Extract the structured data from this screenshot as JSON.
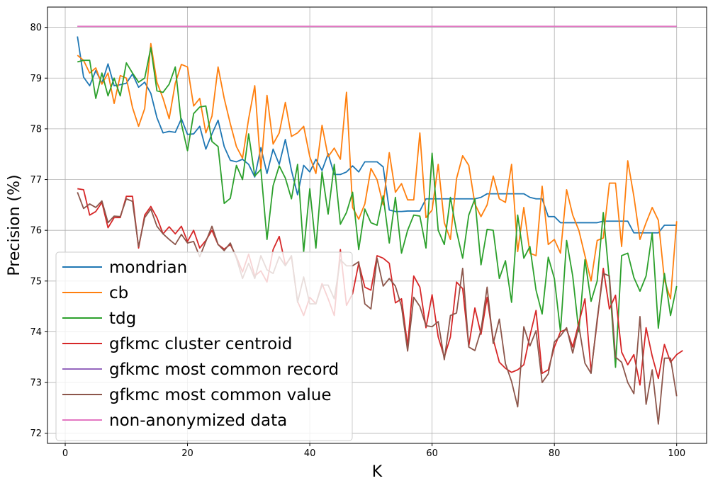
{
  "chart_data": {
    "type": "line",
    "title": "",
    "xlabel": "K",
    "ylabel": "Precision (%)",
    "xlim": [
      -2.9,
      104.9
    ],
    "ylim": [
      71.8,
      80.4
    ],
    "xticks": [
      "0",
      "20",
      "40",
      "60",
      "80",
      "100"
    ],
    "yticks": [
      "72",
      "73",
      "74",
      "75",
      "76",
      "77",
      "78",
      "79",
      "80"
    ],
    "grid": true,
    "legend_position": "lower-left",
    "x_start": 2,
    "x_step": 1,
    "series": [
      {
        "name": "mondrian",
        "color": "#1f77b4",
        "values": [
          79.82,
          79.02,
          78.85,
          79.15,
          78.9,
          79.28,
          78.85,
          78.87,
          78.9,
          79.08,
          78.82,
          78.92,
          78.7,
          78.22,
          77.92,
          77.95,
          77.93,
          78.2,
          77.89,
          77.9,
          78.05,
          77.6,
          77.9,
          78.17,
          77.65,
          77.38,
          77.35,
          77.4,
          77.3,
          77.05,
          77.63,
          77.12,
          77.6,
          77.3,
          77.79,
          77.18,
          76.7,
          77.28,
          77.15,
          77.4,
          77.18,
          77.51,
          77.1,
          77.1,
          77.15,
          77.27,
          77.15,
          77.35,
          77.35,
          77.35,
          77.25,
          76.4,
          76.37,
          76.37,
          76.38,
          76.38,
          76.38,
          76.62,
          76.62,
          76.62,
          76.62,
          76.62,
          76.62,
          76.62,
          76.62,
          76.62,
          76.65,
          76.72,
          76.72,
          76.72,
          76.72,
          76.72,
          76.72,
          76.72,
          76.65,
          76.62,
          76.62,
          76.27,
          76.27,
          76.15,
          76.15,
          76.15,
          76.15,
          76.15,
          76.15,
          76.15,
          76.18,
          76.18,
          76.18,
          76.18,
          76.18,
          75.95,
          75.95,
          75.95,
          75.95,
          75.95,
          76.1,
          76.1,
          76.1
        ]
      },
      {
        "name": "cb",
        "color": "#ff7f0e",
        "values": [
          79.45,
          79.35,
          79.1,
          79.2,
          78.88,
          79.1,
          78.5,
          79.05,
          79.0,
          78.42,
          78.05,
          78.4,
          79.68,
          78.92,
          78.6,
          78.2,
          78.9,
          79.27,
          79.22,
          78.45,
          78.6,
          77.92,
          78.25,
          79.22,
          78.6,
          78.1,
          77.65,
          77.42,
          78.2,
          78.85,
          77.2,
          78.66,
          77.7,
          77.92,
          78.52,
          77.85,
          77.92,
          78.05,
          77.45,
          77.12,
          78.07,
          77.45,
          77.62,
          77.4,
          78.72,
          76.45,
          76.22,
          76.52,
          77.22,
          77.0,
          76.5,
          77.53,
          76.75,
          76.92,
          76.6,
          76.6,
          77.92,
          76.25,
          76.4,
          77.3,
          76.15,
          75.82,
          77.02,
          77.47,
          77.28,
          76.52,
          76.27,
          76.5,
          77.07,
          76.62,
          76.55,
          77.3,
          75.58,
          76.45,
          75.55,
          75.5,
          76.87,
          75.72,
          75.82,
          75.55,
          76.8,
          76.3,
          76.0,
          75.5,
          75.0,
          75.8,
          75.85,
          76.93,
          76.93,
          75.68,
          77.37,
          76.67,
          75.82,
          76.15,
          76.45,
          76.2,
          75.02,
          74.65,
          76.18
        ]
      },
      {
        "name": "tdg",
        "color": "#2ca02c",
        "values": [
          79.32,
          79.35,
          79.35,
          78.6,
          79.1,
          78.65,
          79.0,
          78.65,
          79.3,
          79.1,
          78.92,
          79.0,
          79.6,
          78.75,
          78.72,
          78.88,
          79.22,
          78.1,
          77.57,
          78.3,
          78.43,
          78.45,
          77.75,
          77.65,
          76.53,
          76.63,
          77.28,
          77.0,
          77.9,
          77.07,
          77.2,
          75.82,
          76.88,
          77.27,
          77.03,
          76.62,
          77.3,
          75.58,
          76.82,
          75.65,
          77.15,
          76.32,
          77.3,
          76.12,
          76.35,
          76.75,
          75.62,
          76.42,
          76.15,
          76.1,
          76.68,
          75.75,
          76.65,
          75.55,
          76.0,
          76.3,
          76.28,
          75.65,
          77.52,
          76.0,
          75.72,
          76.65,
          75.98,
          75.45,
          76.3,
          76.62,
          75.32,
          76.02,
          76.0,
          75.05,
          75.4,
          74.58,
          76.3,
          75.45,
          75.68,
          74.82,
          74.35,
          75.47,
          75.05,
          74.0,
          75.8,
          75.1,
          74.0,
          75.42,
          74.6,
          75.0,
          76.35,
          75.02,
          73.3,
          75.5,
          75.55,
          75.07,
          74.8,
          75.1,
          75.95,
          74.07,
          75.15,
          74.32,
          74.9
        ]
      },
      {
        "name": "gfkmc cluster centroid",
        "color": "#d62728",
        "values": [
          76.82,
          76.8,
          76.3,
          76.37,
          76.55,
          76.05,
          76.25,
          76.25,
          76.67,
          76.67,
          75.65,
          76.3,
          76.47,
          76.25,
          75.93,
          76.07,
          75.93,
          76.08,
          75.78,
          76.0,
          75.65,
          75.8,
          76.0,
          75.72,
          75.63,
          75.72,
          75.48,
          75.18,
          75.53,
          75.1,
          75.2,
          74.98,
          75.62,
          75.88,
          75.32,
          75.48,
          74.6,
          74.32,
          74.68,
          74.55,
          74.95,
          74.65,
          74.32,
          75.62,
          74.52,
          74.75,
          75.35,
          74.88,
          74.82,
          75.5,
          75.45,
          75.35,
          74.57,
          74.65,
          73.72,
          75.1,
          74.88,
          74.08,
          74.73,
          73.9,
          73.5,
          73.9,
          74.98,
          74.85,
          73.72,
          74.47,
          73.95,
          74.68,
          73.85,
          73.4,
          73.28,
          73.2,
          73.25,
          73.35,
          73.92,
          74.42,
          73.18,
          73.25,
          73.7,
          74.0,
          74.05,
          73.7,
          74.17,
          74.65,
          73.22,
          74.2,
          75.25,
          74.45,
          74.72,
          73.6,
          73.35,
          73.55,
          72.95,
          74.08,
          73.52,
          73.08,
          73.75,
          73.4,
          73.55,
          73.63
        ]
      },
      {
        "name": "gfkmc most common record",
        "color": "#9467bd",
        "values": [
          80.02,
          80.02,
          80.02,
          80.02,
          80.02,
          80.02,
          80.02,
          80.02,
          80.02,
          80.02,
          80.02,
          80.02,
          80.02,
          80.02,
          80.02,
          80.02,
          80.02,
          80.02,
          80.02,
          80.02,
          80.02,
          80.02,
          80.02,
          80.02,
          80.02,
          80.02,
          80.02,
          80.02,
          80.02,
          80.02,
          80.02,
          80.02,
          80.02,
          80.02,
          80.02,
          80.02,
          80.02,
          80.02,
          80.02,
          80.02,
          80.02,
          80.02,
          80.02,
          80.02,
          80.02,
          80.02,
          80.02,
          80.02,
          80.02,
          80.02,
          80.02,
          80.02,
          80.02,
          80.02,
          80.02,
          80.02,
          80.02,
          80.02,
          80.02,
          80.02,
          80.02,
          80.02,
          80.02,
          80.02,
          80.02,
          80.02,
          80.02,
          80.02,
          80.02,
          80.02,
          80.02,
          80.02,
          80.02,
          80.02,
          80.02,
          80.02,
          80.02,
          80.02,
          80.02,
          80.02,
          80.02,
          80.02,
          80.02,
          80.02,
          80.02,
          80.02,
          80.02,
          80.02,
          80.02,
          80.02,
          80.02,
          80.02,
          80.02,
          80.02,
          80.02,
          80.02,
          80.02,
          80.02,
          80.02
        ]
      },
      {
        "name": "gfkmc most common value",
        "color": "#8c564b",
        "values": [
          76.75,
          76.43,
          76.52,
          76.45,
          76.58,
          76.15,
          76.28,
          76.27,
          76.62,
          76.57,
          75.68,
          76.25,
          76.42,
          76.08,
          75.93,
          75.82,
          75.72,
          75.92,
          75.75,
          75.78,
          75.48,
          75.78,
          76.08,
          75.72,
          75.6,
          75.75,
          75.45,
          75.05,
          75.35,
          75.05,
          75.5,
          75.22,
          75.15,
          75.48,
          75.3,
          75.5,
          74.58,
          75.08,
          74.55,
          74.55,
          74.92,
          74.92,
          74.65,
          75.42,
          75.3,
          75.3,
          75.38,
          74.55,
          74.45,
          75.45,
          74.9,
          75.05,
          74.9,
          74.5,
          73.62,
          74.68,
          74.5,
          74.12,
          74.1,
          74.2,
          73.45,
          74.32,
          74.37,
          75.25,
          73.7,
          73.63,
          74.03,
          74.88,
          73.77,
          74.25,
          73.37,
          73.02,
          72.52,
          74.1,
          73.72,
          74.02,
          73.0,
          73.17,
          73.8,
          73.92,
          74.08,
          73.58,
          74.12,
          73.38,
          73.18,
          74.25,
          75.15,
          75.1,
          73.5,
          73.4,
          73.0,
          72.78,
          74.3,
          72.57,
          73.25,
          72.18,
          73.48,
          73.48,
          72.73
        ]
      },
      {
        "name": "non-anonymized data",
        "color": "#e377c2",
        "values": [
          80.02,
          80.02,
          80.02,
          80.02,
          80.02,
          80.02,
          80.02,
          80.02,
          80.02,
          80.02,
          80.02,
          80.02,
          80.02,
          80.02,
          80.02,
          80.02,
          80.02,
          80.02,
          80.02,
          80.02,
          80.02,
          80.02,
          80.02,
          80.02,
          80.02,
          80.02,
          80.02,
          80.02,
          80.02,
          80.02,
          80.02,
          80.02,
          80.02,
          80.02,
          80.02,
          80.02,
          80.02,
          80.02,
          80.02,
          80.02,
          80.02,
          80.02,
          80.02,
          80.02,
          80.02,
          80.02,
          80.02,
          80.02,
          80.02,
          80.02,
          80.02,
          80.02,
          80.02,
          80.02,
          80.02,
          80.02,
          80.02,
          80.02,
          80.02,
          80.02,
          80.02,
          80.02,
          80.02,
          80.02,
          80.02,
          80.02,
          80.02,
          80.02,
          80.02,
          80.02,
          80.02,
          80.02,
          80.02,
          80.02,
          80.02,
          80.02,
          80.02,
          80.02,
          80.02,
          80.02,
          80.02,
          80.02,
          80.02,
          80.02,
          80.02,
          80.02,
          80.02,
          80.02,
          80.02,
          80.02,
          80.02,
          80.02,
          80.02,
          80.02,
          80.02,
          80.02,
          80.02,
          80.02,
          80.02
        ]
      }
    ]
  }
}
